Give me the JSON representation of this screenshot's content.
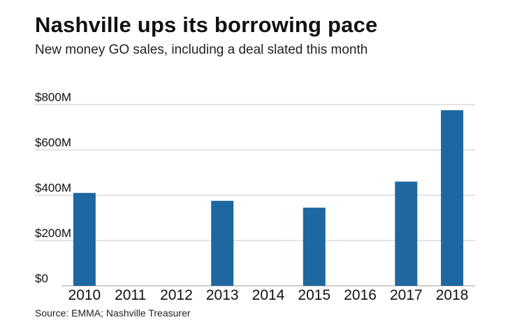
{
  "header": {
    "title": "Nashville ups its borrowing pace",
    "subtitle": "New money GO sales, including a deal slated this month"
  },
  "footer": {
    "source": "Source: EMMA; Nashville Treasurer"
  },
  "colors": {
    "bar": "#1f67a0",
    "grid": "#c8c8c8",
    "axis": "#9a9a9a"
  },
  "chart_data": {
    "type": "bar",
    "title": "Nashville ups its borrowing pace",
    "subtitle": "New money GO sales, including a deal slated this month",
    "xlabel": "",
    "ylabel": "",
    "unit": "$M",
    "categories": [
      "2010",
      "2011",
      "2012",
      "2013",
      "2014",
      "2015",
      "2016",
      "2017",
      "2018"
    ],
    "values": [
      410,
      0,
      0,
      375,
      0,
      345,
      0,
      460,
      775
    ],
    "ylim": [
      0,
      800
    ],
    "yticks": [
      0,
      200,
      400,
      600,
      800
    ],
    "ytick_labels": [
      "$0",
      "$200M",
      "$400M",
      "$600M",
      "$800M"
    ],
    "grid": true,
    "legend": "none"
  }
}
